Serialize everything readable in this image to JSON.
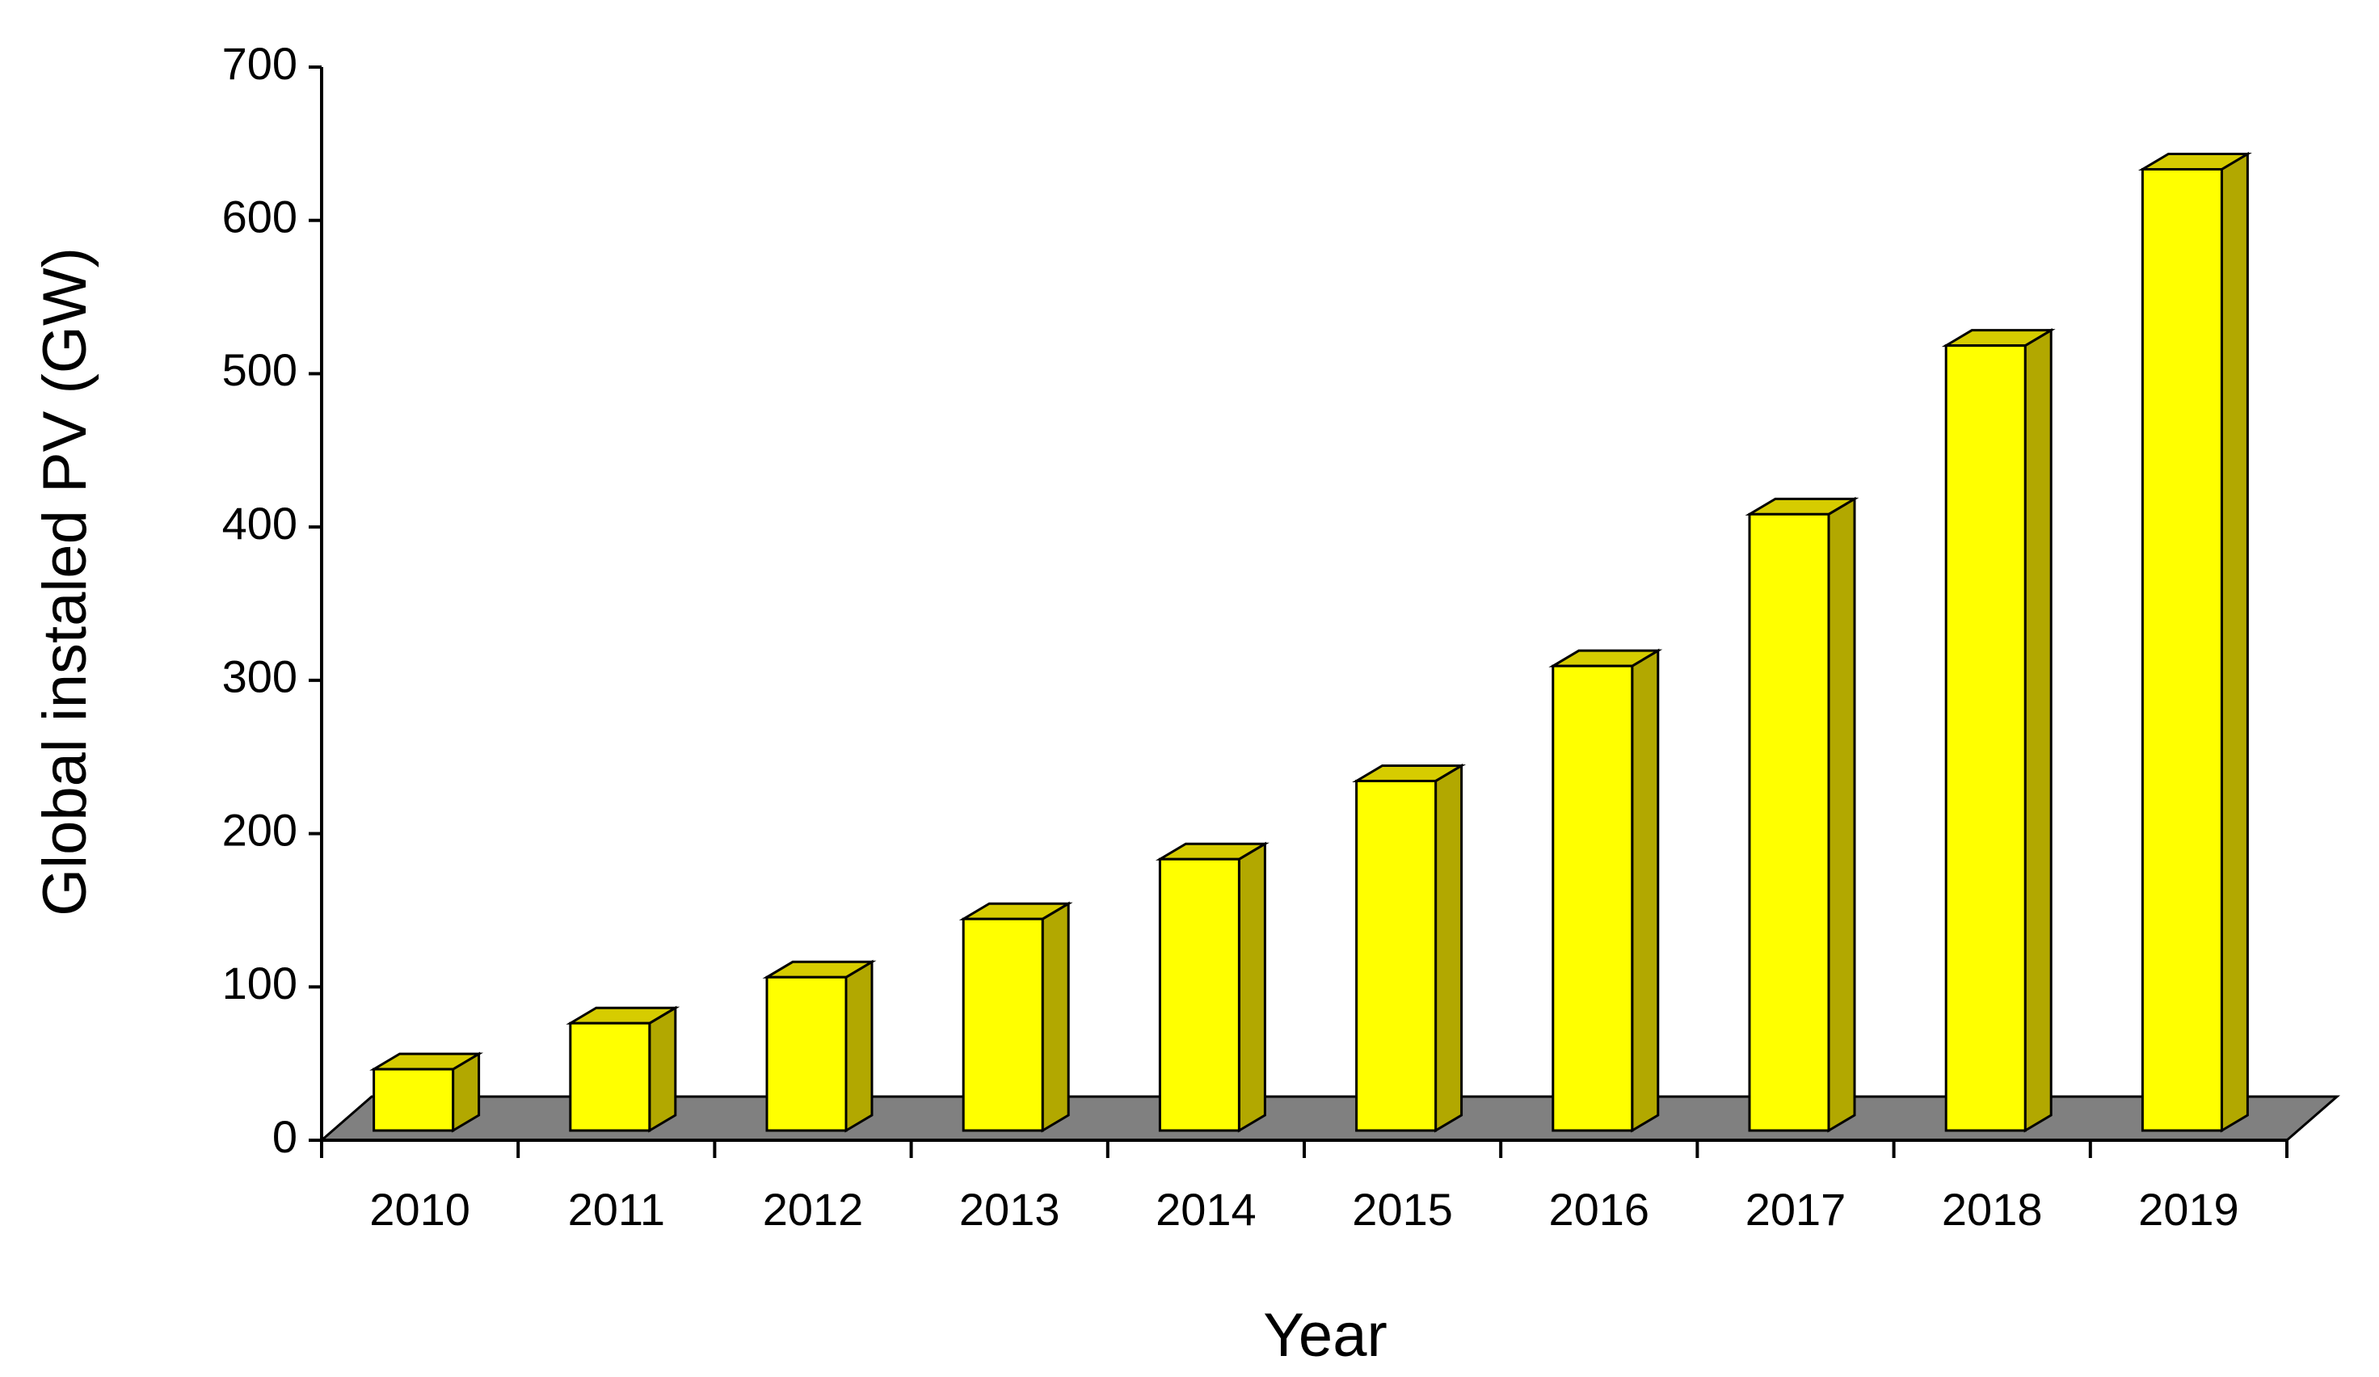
{
  "chart_data": {
    "type": "bar3d",
    "x_label": "Year",
    "y_label": "Global instaled PV (GW)",
    "categories": [
      "2010",
      "2011",
      "2012",
      "2013",
      "2014",
      "2015",
      "2016",
      "2017",
      "2018",
      "2019"
    ],
    "values": [
      40,
      70,
      100,
      138,
      177,
      228,
      303,
      402,
      512,
      627
    ],
    "color": "#ffff00",
    "ylim": [
      0,
      700
    ],
    "yticks": [
      0,
      100,
      200,
      300,
      400,
      500,
      600,
      700
    ],
    "grid": false
  }
}
